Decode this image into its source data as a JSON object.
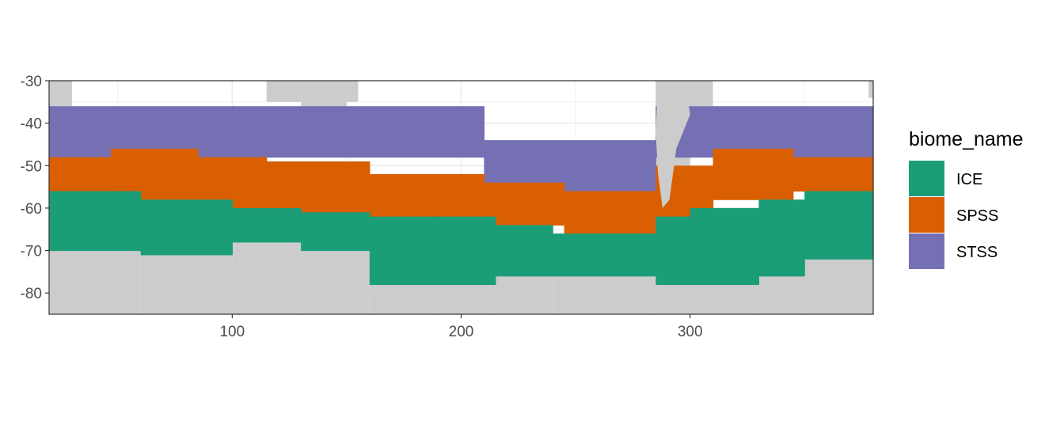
{
  "chart_data": {
    "type": "heatmap",
    "title": "",
    "xlabel": "",
    "ylabel": "",
    "xlim": [
      20,
      380
    ],
    "ylim": [
      -85,
      -30
    ],
    "x_ticks": [
      100,
      200,
      300
    ],
    "y_ticks": [
      -30,
      -40,
      -50,
      -60,
      -70,
      -80
    ],
    "x_tick_labels": [
      "100",
      "200",
      "300"
    ],
    "y_tick_labels": [
      "-30",
      "-40",
      "-50",
      "-60",
      "-70",
      "-80"
    ],
    "grid": true,
    "legend": {
      "title": "biome_name",
      "placement": "right",
      "entries": [
        {
          "name": "ICE",
          "color": "#1b9e77"
        },
        {
          "name": "SPSS",
          "color": "#d95f02"
        },
        {
          "name": "STSS",
          "color": "#7570b3"
        }
      ]
    },
    "land_color": "#cccccc",
    "background_color": "#ffffff",
    "cell_height_deg": 1.0,
    "series": [
      {
        "name": "STSS",
        "color": "#7570b3",
        "bands": [
          {
            "x": [
              20,
              210
            ],
            "y": [
              -48,
              -36
            ]
          },
          {
            "x": [
              210,
              285
            ],
            "y": [
              -56,
              -44
            ]
          },
          {
            "x": [
              285,
              380
            ],
            "y": [
              -48,
              -36
            ]
          }
        ]
      },
      {
        "name": "SPSS",
        "color": "#d95f02",
        "bands": [
          {
            "x": [
              20,
              47
            ],
            "y": [
              -56,
              -48
            ]
          },
          {
            "x": [
              47,
              85
            ],
            "y": [
              -58,
              -46
            ]
          },
          {
            "x": [
              85,
              115
            ],
            "y": [
              -60,
              -48
            ]
          },
          {
            "x": [
              115,
              160
            ],
            "y": [
              -61,
              -49
            ]
          },
          {
            "x": [
              160,
              210
            ],
            "y": [
              -62,
              -52
            ]
          },
          {
            "x": [
              210,
              245
            ],
            "y": [
              -64,
              -54
            ]
          },
          {
            "x": [
              245,
              285
            ],
            "y": [
              -66,
              -56
            ]
          },
          {
            "x": [
              285,
              310
            ],
            "y": [
              -62,
              -50
            ]
          },
          {
            "x": [
              310,
              345
            ],
            "y": [
              -58,
              -46
            ]
          },
          {
            "x": [
              345,
              380
            ],
            "y": [
              -56,
              -48
            ]
          }
        ]
      },
      {
        "name": "ICE",
        "color": "#1b9e77",
        "bands": [
          {
            "x": [
              20,
              60
            ],
            "y": [
              -70,
              -56
            ]
          },
          {
            "x": [
              60,
              100
            ],
            "y": [
              -71,
              -58
            ]
          },
          {
            "x": [
              100,
              130
            ],
            "y": [
              -68,
              -60
            ]
          },
          {
            "x": [
              130,
              160
            ],
            "y": [
              -70,
              -61
            ]
          },
          {
            "x": [
              160,
              190
            ],
            "y": [
              -78,
              -62
            ]
          },
          {
            "x": [
              190,
              215
            ],
            "y": [
              -78,
              -62
            ]
          },
          {
            "x": [
              215,
              240
            ],
            "y": [
              -76,
              -64
            ]
          },
          {
            "x": [
              240,
              285
            ],
            "y": [
              -76,
              -66
            ]
          },
          {
            "x": [
              285,
              300
            ],
            "y": [
              -78,
              -62
            ]
          },
          {
            "x": [
              300,
              330
            ],
            "y": [
              -78,
              -60
            ]
          },
          {
            "x": [
              330,
              350
            ],
            "y": [
              -76,
              -58
            ]
          },
          {
            "x": [
              350,
              380
            ],
            "y": [
              -72,
              -56
            ]
          }
        ]
      }
    ]
  }
}
